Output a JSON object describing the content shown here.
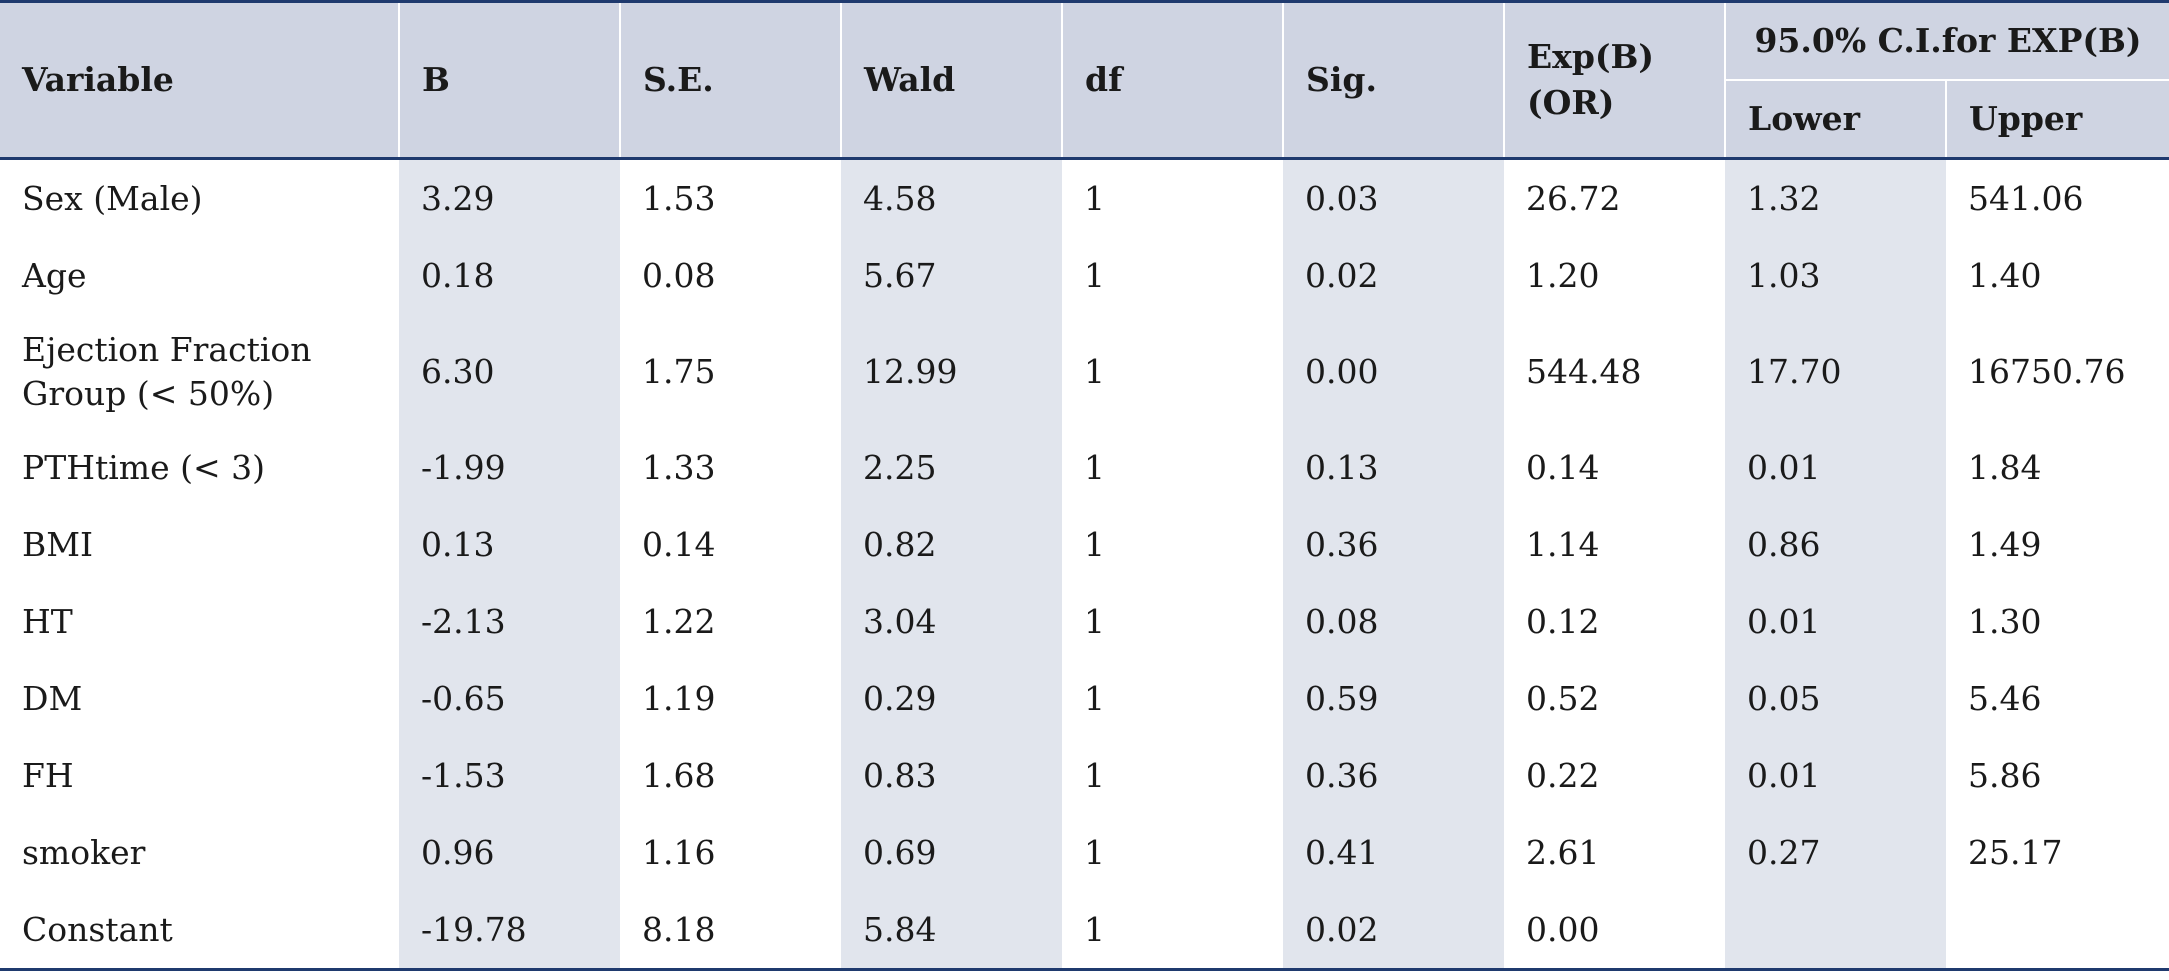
{
  "headers": {
    "variable": "Variable",
    "b": "B",
    "se": "S.E.",
    "wald": "Wald",
    "df": "df",
    "sig": "Sig.",
    "expb_line1": "Exp(B)",
    "expb_line2": "(OR)",
    "ci_group": "95.0% C.I.for EXP(B)",
    "lower": "Lower",
    "upper": "Upper"
  },
  "rows": [
    {
      "variable": "Sex (Male)",
      "b": "3.29",
      "se": "1.53",
      "wald": "4.58",
      "df": "1",
      "sig": "0.03",
      "expb": "26.72",
      "lower": "1.32",
      "upper": "541.06"
    },
    {
      "variable": "Age",
      "b": "0.18",
      "se": "0.08",
      "wald": "5.67",
      "df": "1",
      "sig": "0.02",
      "expb": "1.20",
      "lower": "1.03",
      "upper": "1.40"
    },
    {
      "variable_line1": "Ejection Fraction",
      "variable_line2": "Group (< 50%)",
      "b": "6.30",
      "se": "1.75",
      "wald": "12.99",
      "df": "1",
      "sig": "0.00",
      "expb": "544.48",
      "lower": "17.70",
      "upper": "16750.76"
    },
    {
      "variable": "PTHtime (< 3)",
      "b": "-1.99",
      "se": "1.33",
      "wald": "2.25",
      "df": "1",
      "sig": "0.13",
      "expb": "0.14",
      "lower": "0.01",
      "upper": "1.84"
    },
    {
      "variable": "BMI",
      "b": "0.13",
      "se": "0.14",
      "wald": "0.82",
      "df": "1",
      "sig": "0.36",
      "expb": "1.14",
      "lower": "0.86",
      "upper": "1.49"
    },
    {
      "variable": "HT",
      "b": "-2.13",
      "se": "1.22",
      "wald": "3.04",
      "df": "1",
      "sig": "0.08",
      "expb": "0.12",
      "lower": "0.01",
      "upper": "1.30"
    },
    {
      "variable": "DM",
      "b": "-0.65",
      "se": "1.19",
      "wald": "0.29",
      "df": "1",
      "sig": "0.59",
      "expb": "0.52",
      "lower": "0.05",
      "upper": "5.46"
    },
    {
      "variable": "FH",
      "b": "-1.53",
      "se": "1.68",
      "wald": "0.83",
      "df": "1",
      "sig": "0.36",
      "expb": "0.22",
      "lower": "0.01",
      "upper": "5.86"
    },
    {
      "variable": "smoker",
      "b": "0.96",
      "se": "1.16",
      "wald": "0.69",
      "df": "1",
      "sig": "0.41",
      "expb": "2.61",
      "lower": "0.27",
      "upper": "25.17"
    },
    {
      "variable": "Constant",
      "b": "-19.78",
      "se": "8.18",
      "wald": "5.84",
      "df": "1",
      "sig": "0.02",
      "expb": "0.00",
      "lower": "",
      "upper": ""
    }
  ]
}
